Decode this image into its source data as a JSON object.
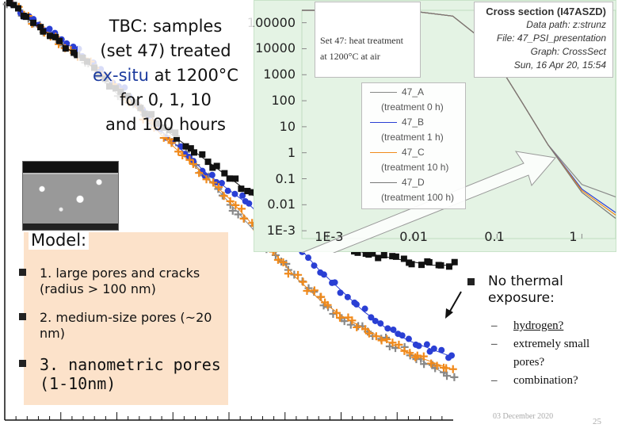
{
  "overlay_title": {
    "line1_prefix": "TBC:",
    "line1_suffix": "samples",
    "line2": "(set 47) treated",
    "line3_blue": "ex-situ",
    "line3_rest": "at 1200°C",
    "line4": "for 0, 1, 10",
    "line5": "and 100 hours"
  },
  "inset_info": {
    "heat_line1": "Set 47: heat treatment",
    "heat_line2": "at 1200°C at air",
    "cs_title": "Cross section (I47ASZD)",
    "cs_data_path": "Data path: z:strunz",
    "cs_file": "File: 47_PSI_presentation",
    "cs_graph": "Graph: CrossSect",
    "cs_date": "Sun, 16 Apr 20, 15:54"
  },
  "legend": {
    "items": [
      {
        "label": "47_A",
        "sub": "(treatment 0 h)",
        "color": "#888888"
      },
      {
        "label": "47_B",
        "sub": "(treatment 1 h)",
        "color": "#2a3fd4"
      },
      {
        "label": "47_C",
        "sub": "(treatment 10 h)",
        "color": "#f08a1c"
      },
      {
        "label": "47_D",
        "sub": "(treatment 100 h)",
        "color": "#777777"
      }
    ]
  },
  "model": {
    "title": "Model:",
    "items": [
      {
        "text": "1. large pores and cracks (radius > 100 nm)"
      },
      {
        "text": "2. medium-size pores (~20 nm)"
      },
      {
        "text": "3. nanometric pores (1-10nm)"
      }
    ]
  },
  "side_note": {
    "text": "No thermal exposure:",
    "items": [
      {
        "text": "hydrogen?",
        "underline": true
      },
      {
        "text": "extremely small pores?",
        "underline": false
      },
      {
        "text": "combination?",
        "underline": false
      }
    ]
  },
  "footer": {
    "date": "03 December 2020",
    "page": "25"
  },
  "chart_data": {
    "type": "scatter",
    "title": "",
    "xlabel": "",
    "ylabel": "",
    "x_scale": "log",
    "y_scale": "log",
    "inset_axes": {
      "xlim": [
        0.0005,
        2.5
      ],
      "ylim": [
        0.0005,
        300000
      ],
      "y_tick_labels": [
        "100000",
        "10000",
        "1000",
        "100",
        "10",
        "1",
        "0.1",
        "0.01",
        "1E-3"
      ],
      "y_tick_values": [
        100000,
        10000,
        1000,
        100,
        10,
        1,
        0.1,
        0.01,
        0.001
      ],
      "x_tick_labels": [
        "1E-3",
        "0.01",
        "0.1",
        "1"
      ],
      "x_tick_values": [
        0.001,
        0.01,
        0.1,
        1
      ]
    },
    "inset_series": [
      {
        "name": "47_A",
        "color": "#888888",
        "x": [
          0.0005,
          0.003,
          0.01,
          0.03,
          0.06,
          0.1,
          0.2,
          0.4,
          1,
          2.5
        ],
        "y": [
          300000,
          300000,
          280000,
          180000,
          30000,
          3000,
          80,
          2,
          0.06,
          0.02
        ]
      },
      {
        "name": "47_B",
        "color": "#2a3fd4",
        "x": [
          0.0005,
          0.003,
          0.01,
          0.03,
          0.06,
          0.1,
          0.2,
          0.4,
          1,
          2.5
        ],
        "y": [
          300000,
          300000,
          280000,
          180000,
          30000,
          3000,
          80,
          2,
          0.04,
          0.005
        ]
      },
      {
        "name": "47_C",
        "color": "#f08a1c",
        "x": [
          0.0005,
          0.003,
          0.01,
          0.03,
          0.06,
          0.1,
          0.2,
          0.4,
          1,
          2.5
        ],
        "y": [
          300000,
          300000,
          280000,
          180000,
          30000,
          3000,
          80,
          2,
          0.035,
          0.004
        ]
      },
      {
        "name": "47_D",
        "color": "#777777",
        "x": [
          0.0005,
          0.003,
          0.01,
          0.03,
          0.06,
          0.1,
          0.2,
          0.4,
          1,
          2.5
        ],
        "y": [
          300000,
          300000,
          280000,
          180000,
          30000,
          3000,
          80,
          2,
          0.03,
          0.003
        ]
      }
    ],
    "main_axes": {
      "u_range": [
        0,
        10
      ],
      "v_range": [
        0,
        10
      ]
    },
    "main_series": [
      {
        "name": "47_A",
        "color": "#888888",
        "marker": "plus",
        "points": [
          [
            0.1,
            10
          ],
          [
            0.5,
            9.6
          ],
          [
            1,
            9.2
          ],
          [
            1.5,
            8.8
          ],
          [
            2,
            8.4
          ],
          [
            2.5,
            7.8
          ],
          [
            3,
            7.4
          ],
          [
            3.5,
            6.9
          ],
          [
            4,
            6.4
          ],
          [
            4.5,
            5.8
          ],
          [
            5,
            5.2
          ],
          [
            5.5,
            4.6
          ],
          [
            6,
            4.0
          ],
          [
            6.5,
            3.4
          ],
          [
            7,
            2.9
          ],
          [
            7.5,
            2.5
          ],
          [
            8,
            2.2
          ],
          [
            8.5,
            1.9
          ],
          [
            9,
            1.6
          ],
          [
            9.5,
            1.3
          ],
          [
            10,
            1.0
          ]
        ]
      },
      {
        "name": "47_B",
        "color": "#2a3fd4",
        "marker": "circle",
        "points": [
          [
            0.1,
            10
          ],
          [
            0.5,
            9.6
          ],
          [
            1,
            9.3
          ],
          [
            1.5,
            8.9
          ],
          [
            2,
            8.5
          ],
          [
            2.5,
            8.0
          ],
          [
            3,
            7.5
          ],
          [
            3.5,
            6.9
          ],
          [
            4,
            6.4
          ],
          [
            4.5,
            5.9
          ],
          [
            5,
            5.5
          ],
          [
            5.5,
            5.1
          ],
          [
            6,
            4.6
          ],
          [
            6.5,
            4.2
          ],
          [
            7,
            3.6
          ],
          [
            7.5,
            3.1
          ],
          [
            8,
            2.6
          ],
          [
            8.5,
            2.2
          ],
          [
            9,
            1.9
          ],
          [
            9.5,
            1.7
          ],
          [
            10,
            1.5
          ]
        ]
      },
      {
        "name": "47_C",
        "color": "#f08a1c",
        "marker": "plus",
        "points": [
          [
            0.1,
            10
          ],
          [
            0.5,
            9.6
          ],
          [
            1,
            9.2
          ],
          [
            1.5,
            8.8
          ],
          [
            2,
            8.4
          ],
          [
            2.5,
            7.9
          ],
          [
            3,
            7.4
          ],
          [
            3.5,
            6.8
          ],
          [
            4,
            6.3
          ],
          [
            4.5,
            5.8
          ],
          [
            5,
            5.3
          ],
          [
            5.5,
            4.7
          ],
          [
            6,
            4.0
          ],
          [
            6.5,
            3.4
          ],
          [
            7,
            2.9
          ],
          [
            7.5,
            2.5
          ],
          [
            8,
            2.2
          ],
          [
            8.5,
            1.9
          ],
          [
            9,
            1.6
          ],
          [
            9.5,
            1.4
          ],
          [
            10,
            1.2
          ]
        ]
      },
      {
        "name": "no thermal exposure",
        "color": "#111111",
        "marker": "square",
        "points": [
          [
            0.1,
            10
          ],
          [
            0.5,
            9.6
          ],
          [
            1,
            9.2
          ],
          [
            1.5,
            8.8
          ],
          [
            2,
            8.4
          ],
          [
            2.5,
            7.9
          ],
          [
            3,
            7.5
          ],
          [
            3.5,
            7.0
          ],
          [
            4,
            6.6
          ],
          [
            4.5,
            6.2
          ],
          [
            5,
            5.8
          ],
          [
            5.5,
            5.4
          ],
          [
            6,
            5.0
          ],
          [
            6.5,
            4.7
          ],
          [
            7,
            4.4
          ],
          [
            7.5,
            4.2
          ],
          [
            8,
            4.0
          ],
          [
            8.5,
            3.9
          ],
          [
            9,
            3.8
          ],
          [
            9.5,
            3.7
          ],
          [
            10,
            3.7
          ]
        ]
      }
    ]
  }
}
